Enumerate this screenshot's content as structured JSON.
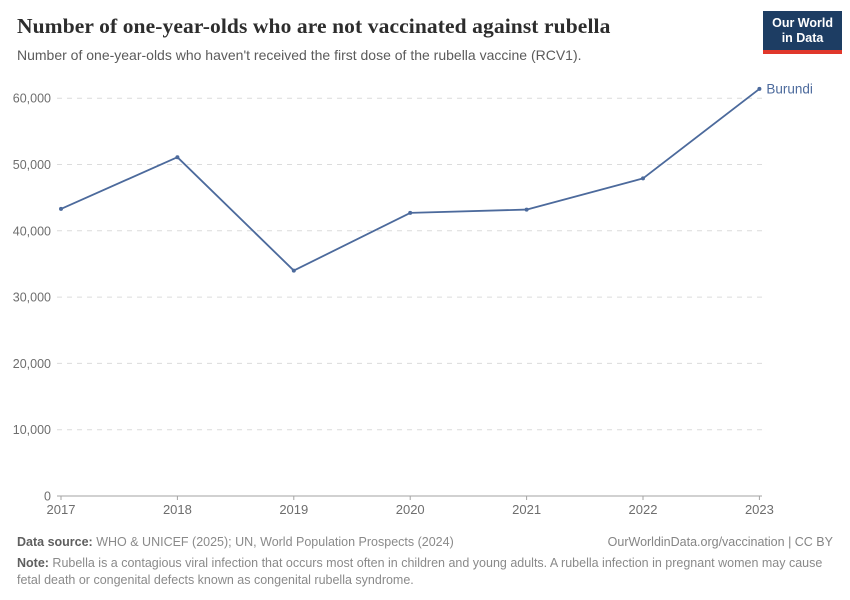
{
  "header": {
    "title": "Number of one-year-olds who are not vaccinated against rubella",
    "subtitle": "Number of one-year-olds who haven't received the first dose of the rubella vaccine (RCV1)."
  },
  "logo": {
    "line1": "Our World",
    "line2": "in Data",
    "bg_color": "#1d3d63",
    "bar_color": "#e0372b"
  },
  "chart_data": {
    "type": "line",
    "title": "Number of one-year-olds who are not vaccinated against rubella",
    "xlabel": "",
    "ylabel": "",
    "x": [
      2017,
      2018,
      2019,
      2020,
      2021,
      2022,
      2023
    ],
    "series": [
      {
        "name": "Burundi",
        "color": "#4c6a9c",
        "values": [
          43300,
          51100,
          34000,
          42700,
          43200,
          47900,
          61400
        ]
      }
    ],
    "ylim": [
      0,
      62000
    ],
    "yticks": [
      0,
      10000,
      20000,
      30000,
      40000,
      50000,
      60000
    ],
    "grid": true,
    "legend_position": "end-of-line",
    "grid_color": "#dcdcdc",
    "axis_color": "#a3a3a3",
    "tick_label_color": "#6e6e6e"
  },
  "footer": {
    "source_label": "Data source:",
    "source_text": " WHO & UNICEF (2025); UN, World Population Prospects (2024)",
    "link": "OurWorldinData.org/vaccination | CC BY",
    "note_label": "Note:",
    "note_text": " Rubella is a contagious viral infection that occurs most often in children and young adults. A rubella infection in pregnant women may cause fetal death or congenital defects known as congenital rubella syndrome."
  }
}
